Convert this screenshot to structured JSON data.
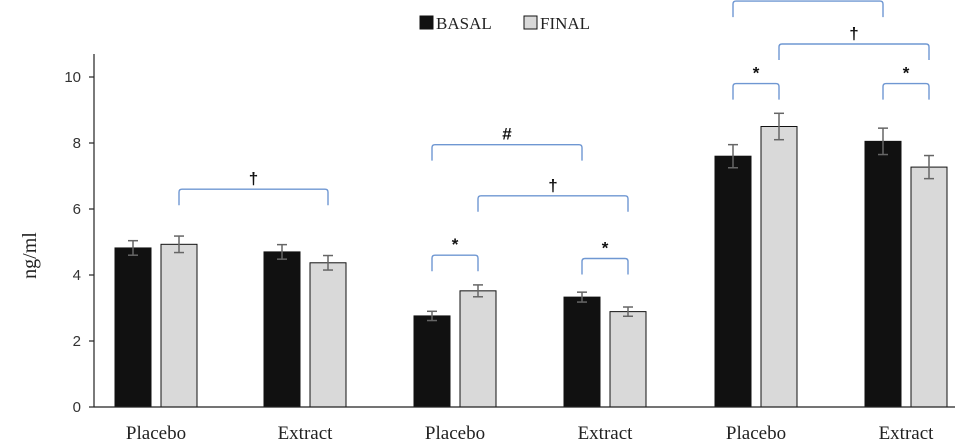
{
  "chart_data": {
    "type": "bar",
    "ylabel": "ng/ml",
    "ylim": [
      0,
      11
    ],
    "yticks": [
      0,
      2,
      4,
      6,
      8,
      10
    ],
    "grid": false,
    "legend_position": "top-center",
    "categories": [
      "Placebo",
      "Extract",
      "Placebo",
      "Extract",
      "Placebo",
      "Extract"
    ],
    "series": [
      {
        "name": "BASAL",
        "color": "#111111",
        "values": [
          4.82,
          4.7,
          2.76,
          3.33,
          7.6,
          8.05
        ],
        "errors": [
          0.22,
          0.22,
          0.14,
          0.15,
          0.35,
          0.4
        ]
      },
      {
        "name": "FINAL",
        "color": "#d9d9d9",
        "values": [
          4.93,
          4.37,
          3.52,
          2.89,
          8.5,
          7.27
        ],
        "errors": [
          0.25,
          0.22,
          0.18,
          0.14,
          0.4,
          0.35
        ]
      }
    ],
    "annotations": [
      {
        "symbol": "†",
        "from": [
          0,
          "FINAL"
        ],
        "to": [
          1,
          "FINAL"
        ],
        "level": 6.6
      },
      {
        "symbol": "#",
        "from": [
          2,
          "BASAL"
        ],
        "to": [
          3,
          "BASAL"
        ],
        "level": 7.95
      },
      {
        "symbol": "†",
        "from": [
          2,
          "FINAL"
        ],
        "to": [
          3,
          "FINAL"
        ],
        "level": 6.4
      },
      {
        "symbol": "*",
        "from": [
          2,
          "BASAL"
        ],
        "to": [
          2,
          "FINAL"
        ],
        "level": 4.6
      },
      {
        "symbol": "*",
        "from": [
          3,
          "BASAL"
        ],
        "to": [
          3,
          "FINAL"
        ],
        "level": 4.5
      },
      {
        "symbol": "#",
        "from": [
          4,
          "BASAL"
        ],
        "to": [
          5,
          "BASAL"
        ],
        "level": 12.3
      },
      {
        "symbol": "†",
        "from": [
          4,
          "FINAL"
        ],
        "to": [
          5,
          "FINAL"
        ],
        "level": 11.0
      },
      {
        "symbol": "*",
        "from": [
          4,
          "BASAL"
        ],
        "to": [
          4,
          "FINAL"
        ],
        "level": 9.8
      },
      {
        "symbol": "*",
        "from": [
          5,
          "BASAL"
        ],
        "to": [
          5,
          "FINAL"
        ],
        "level": 9.8
      }
    ]
  }
}
